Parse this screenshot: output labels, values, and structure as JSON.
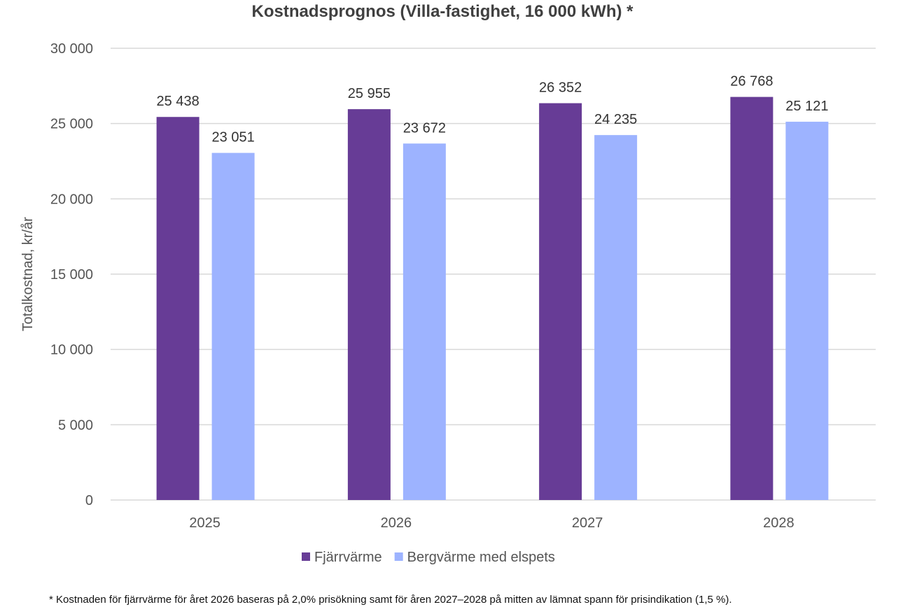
{
  "chart_data": {
    "type": "bar",
    "title": "Kostnadsprognos (Villa-fastighet, 16 000 kWh) *",
    "xlabel": "",
    "ylabel": "Totalkostnad, kr/år",
    "ylim": [
      0,
      30000
    ],
    "yticks": [
      0,
      5000,
      10000,
      15000,
      20000,
      25000,
      30000
    ],
    "ytick_labels": [
      "0",
      "5 000",
      "10 000",
      "15 000",
      "20 000",
      "25 000",
      "30 000"
    ],
    "categories": [
      "2025",
      "2026",
      "2027",
      "2028"
    ],
    "series": [
      {
        "name": "Fjärrvärme",
        "color": "#673C96",
        "values": [
          25438,
          25955,
          26352,
          26768
        ],
        "labels": [
          "25 438",
          "25 955",
          "26 352",
          "26 768"
        ]
      },
      {
        "name": "Bergvärme med elspets",
        "color": "#9DB3FF",
        "values": [
          23051,
          23672,
          24235,
          25121
        ],
        "labels": [
          "23 051",
          "23 672",
          "24 235",
          "25 121"
        ]
      }
    ],
    "grid": true,
    "legend": "bottom",
    "footnote": "* Kostnaden för fjärrvärme för året 2026 baseras på 2,0% prisökning samt för åren 2027–2028 på mitten av lämnat spann för prisindikation (1,5 %)."
  }
}
